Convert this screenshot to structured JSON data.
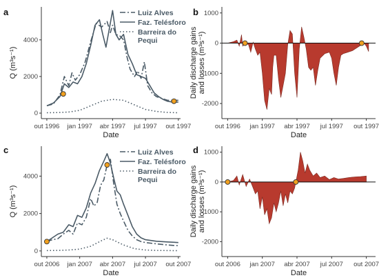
{
  "colors": {
    "series": "#4a5a66",
    "fill": "#b83a2e",
    "marker": "#f0a020",
    "axis": "#333333"
  },
  "panels": [
    {
      "letter": "a",
      "chart_data": {
        "type": "line",
        "xlabel": "Date",
        "ylabel": "Q (m³s⁻¹)",
        "xticks": [
          {
            "x": 0,
            "label": "out 1996"
          },
          {
            "x": 3,
            "label": "jan 1997"
          },
          {
            "x": 6,
            "label": "abr 1997"
          },
          {
            "x": 9,
            "label": "jul 1997"
          },
          {
            "x": 12,
            "label": "out 1997"
          }
        ],
        "xlim": [
          -0.5,
          12.2
        ],
        "yticks": [
          0,
          2000,
          4000
        ],
        "ylim": [
          -300,
          5800
        ],
        "series": [
          {
            "name": "Luiz Alves",
            "dash": "8,3,2,3",
            "x": [
              0,
              0.6,
              1.2,
              1.6,
              2.0,
              2.3,
              2.6,
              3.0,
              3.5,
              4.0,
              4.5,
              5.0,
              5.5,
              5.8,
              6.0,
              6.3,
              6.7,
              7.0,
              7.3,
              7.6,
              8.0,
              8.3,
              8.6,
              8.9,
              9.2,
              9.6,
              10.0,
              10.5,
              11.0,
              11.5,
              12.0
            ],
            "y": [
              400,
              500,
              1000,
              2000,
              1500,
              2200,
              1800,
              2100,
              2800,
              3900,
              4900,
              4700,
              5000,
              4400,
              4800,
              4300,
              4200,
              4000,
              3100,
              2400,
              2000,
              2300,
              1900,
              2800,
              1500,
              1100,
              900,
              800,
              700,
              700,
              700
            ]
          },
          {
            "name": "Faz. Telésforo",
            "dash": "",
            "x": [
              0,
              0.6,
              1.2,
              1.6,
              2.0,
              2.4,
              2.8,
              3.2,
              3.6,
              4.0,
              4.4,
              4.8,
              5.1,
              5.4,
              5.7,
              6.0,
              6.3,
              6.6,
              7.0,
              7.4,
              7.8,
              8.2,
              8.6,
              9.0,
              9.4,
              9.8,
              10.2,
              10.6,
              11.0,
              11.5,
              12.0
            ],
            "y": [
              400,
              550,
              900,
              1600,
              1400,
              1700,
              1600,
              2000,
              2700,
              3700,
              4800,
              5100,
              4300,
              3600,
              4600,
              5600,
              4300,
              4000,
              4300,
              3200,
              2700,
              2100,
              2000,
              1900,
              1500,
              1100,
              900,
              750,
              650,
              600,
              600
            ]
          },
          {
            "name": "Barreira do Pequi",
            "dash": "1.5,3",
            "x": [
              0,
              1,
              2,
              3,
              4,
              5,
              6,
              7,
              8,
              9,
              10,
              11,
              12
            ],
            "y": [
              20,
              30,
              60,
              150,
              400,
              650,
              750,
              700,
              450,
              200,
              90,
              40,
              20
            ]
          }
        ],
        "markers": [
          {
            "x": 1.5,
            "y": 1050
          },
          {
            "x": 11.6,
            "y": 650
          }
        ],
        "legend_position": "top-right"
      }
    },
    {
      "letter": "b",
      "chart_data": {
        "type": "area",
        "xlabel": "Date",
        "ylabel": "Daily discharge gains and losses (m³s⁻¹)",
        "xticks": [
          {
            "x": 0,
            "label": "out 1996"
          },
          {
            "x": 3,
            "label": "jan 1997"
          },
          {
            "x": 6,
            "label": "abr 1997"
          },
          {
            "x": 9,
            "label": "jul 1997"
          },
          {
            "x": 12,
            "label": "out 1997"
          }
        ],
        "xlim": [
          -0.5,
          12.8
        ],
        "yticks": [
          -2000,
          -1000,
          0,
          1000
        ],
        "ylim": [
          -2500,
          1200
        ],
        "x": [
          0,
          0.5,
          0.8,
          1.0,
          1.2,
          1.3,
          1.5,
          1.8,
          2.0,
          2.2,
          2.4,
          2.6,
          2.8,
          3.0,
          3.2,
          3.4,
          3.6,
          3.8,
          3.9,
          4.0,
          4.2,
          4.4,
          4.6,
          4.8,
          5.0,
          5.2,
          5.4,
          5.6,
          5.8,
          6.0,
          6.2,
          6.4,
          6.6,
          6.8,
          7.0,
          7.2,
          7.4,
          7.6,
          7.8,
          8.0,
          8.4,
          8.8,
          9.0,
          9.2,
          9.4,
          9.6,
          9.8,
          10.0,
          10.4,
          10.8,
          11.2,
          11.6,
          11.8,
          12.0,
          12.2
        ],
        "y": [
          0,
          50,
          100,
          -100,
          280,
          -100,
          0,
          -50,
          -300,
          30,
          -200,
          -400,
          -300,
          -1000,
          -1900,
          -2200,
          -1500,
          -1700,
          -800,
          -400,
          -400,
          -1200,
          -1800,
          -1400,
          -1000,
          -50,
          420,
          300,
          -1000,
          -1800,
          -200,
          540,
          200,
          -200,
          -800,
          -900,
          -800,
          -1400,
          -900,
          -500,
          -350,
          -300,
          -500,
          -1000,
          -1400,
          -800,
          -400,
          -350,
          -300,
          -250,
          -150,
          -50,
          0,
          -100,
          -280
        ],
        "markers": [
          {
            "x": 1.5,
            "y": 0
          },
          {
            "x": 11.6,
            "y": 0
          }
        ]
      }
    },
    {
      "letter": "c",
      "chart_data": {
        "type": "line",
        "xlabel": "Date",
        "ylabel": "Q (m³s⁻¹)",
        "xticks": [
          {
            "x": 0,
            "label": "out 2006"
          },
          {
            "x": 3,
            "label": "jan 2007"
          },
          {
            "x": 6,
            "label": "abr 2007"
          },
          {
            "x": 9,
            "label": "jul 2007"
          },
          {
            "x": 12,
            "label": "out 2007"
          }
        ],
        "xlim": [
          -0.5,
          12.2
        ],
        "yticks": [
          0,
          2000,
          4000
        ],
        "ylim": [
          -300,
          5600
        ],
        "series": [
          {
            "name": "Luiz Alves",
            "dash": "8,3,2,3",
            "x": [
              0,
              0.5,
              1.0,
              1.5,
              2.0,
              2.4,
              2.8,
              3.2,
              3.6,
              4.0,
              4.3,
              4.6,
              4.9,
              5.2,
              5.5,
              5.8,
              6.1,
              6.4,
              6.7,
              7.0,
              7.4,
              7.8,
              8.2,
              8.6,
              9.0,
              10,
              11,
              12
            ],
            "y": [
              500,
              600,
              650,
              900,
              1100,
              900,
              1500,
              1400,
              1800,
              2800,
              2400,
              2600,
              3500,
              3800,
              4600,
              4900,
              3600,
              2500,
              2000,
              1600,
              1100,
              800,
              600,
              500,
              450,
              380,
              320,
              280
            ]
          },
          {
            "name": "Faz. Telésforo",
            "dash": "",
            "x": [
              0,
              0.5,
              1.0,
              1.5,
              2.0,
              2.4,
              2.8,
              3.2,
              3.6,
              4.0,
              4.4,
              4.8,
              5.2,
              5.5,
              5.8,
              6.1,
              6.4,
              6.7,
              7.0,
              7.4,
              7.8,
              8.2,
              8.6,
              9.0,
              10,
              11,
              12
            ],
            "y": [
              500,
              700,
              900,
              1000,
              1400,
              1300,
              1900,
              1800,
              2300,
              3100,
              3600,
              4300,
              4800,
              5200,
              4700,
              3900,
              3200,
              3000,
              2500,
              1900,
              1300,
              900,
              700,
              600,
              520,
              480,
              450
            ]
          },
          {
            "name": "Barreira do Pequi",
            "dash": "1.5,3",
            "x": [
              0,
              1,
              2,
              3,
              4,
              5,
              5.5,
              6,
              7,
              8,
              9,
              10,
              11,
              12
            ],
            "y": [
              20,
              30,
              50,
              100,
              250,
              550,
              680,
              600,
              320,
              120,
              50,
              30,
              20,
              15
            ]
          }
        ],
        "markers": [
          {
            "x": 0,
            "y": 500
          },
          {
            "x": 5.5,
            "y": 4600
          }
        ],
        "legend_position": "top-right"
      }
    },
    {
      "letter": "d",
      "chart_data": {
        "type": "area",
        "xlabel": "Date",
        "ylabel": "Daily discharge gains and losses (m³s⁻¹)",
        "xticks": [
          {
            "x": 0,
            "label": "out 2006"
          },
          {
            "x": 3,
            "label": "jan 2007"
          },
          {
            "x": 6,
            "label": "abr 2007"
          },
          {
            "x": 9,
            "label": "jul 2007"
          },
          {
            "x": 12,
            "label": "out 2007"
          }
        ],
        "xlim": [
          -0.5,
          12.8
        ],
        "yticks": [
          -2000,
          -1000,
          0,
          1000
        ],
        "ylim": [
          -2500,
          1200
        ],
        "x": [
          0,
          0.5,
          0.8,
          1.0,
          1.3,
          1.6,
          1.9,
          2.2,
          2.4,
          2.6,
          2.8,
          3.0,
          3.2,
          3.4,
          3.6,
          3.8,
          4.0,
          4.2,
          4.4,
          4.6,
          4.8,
          5.0,
          5.2,
          5.4,
          5.6,
          5.8,
          5.9,
          6.1,
          6.3,
          6.5,
          6.7,
          6.9,
          7.1,
          7.4,
          7.7,
          8.0,
          8.4,
          8.8,
          9.2,
          9.6,
          10.0,
          10.5,
          11.0,
          11.5,
          12.0
        ],
        "y": [
          0,
          50,
          200,
          -100,
          250,
          -150,
          100,
          -200,
          -400,
          -300,
          -900,
          -500,
          -1100,
          -900,
          -1400,
          -1200,
          -700,
          -1000,
          -700,
          -300,
          -800,
          -400,
          -700,
          -300,
          -400,
          -200,
          0,
          400,
          1000,
          700,
          300,
          600,
          400,
          200,
          300,
          150,
          200,
          80,
          150,
          100,
          120,
          150,
          170,
          180,
          200
        ],
        "markers": [
          {
            "x": 0,
            "y": 0
          },
          {
            "x": 5.9,
            "y": 0
          }
        ]
      }
    }
  ]
}
